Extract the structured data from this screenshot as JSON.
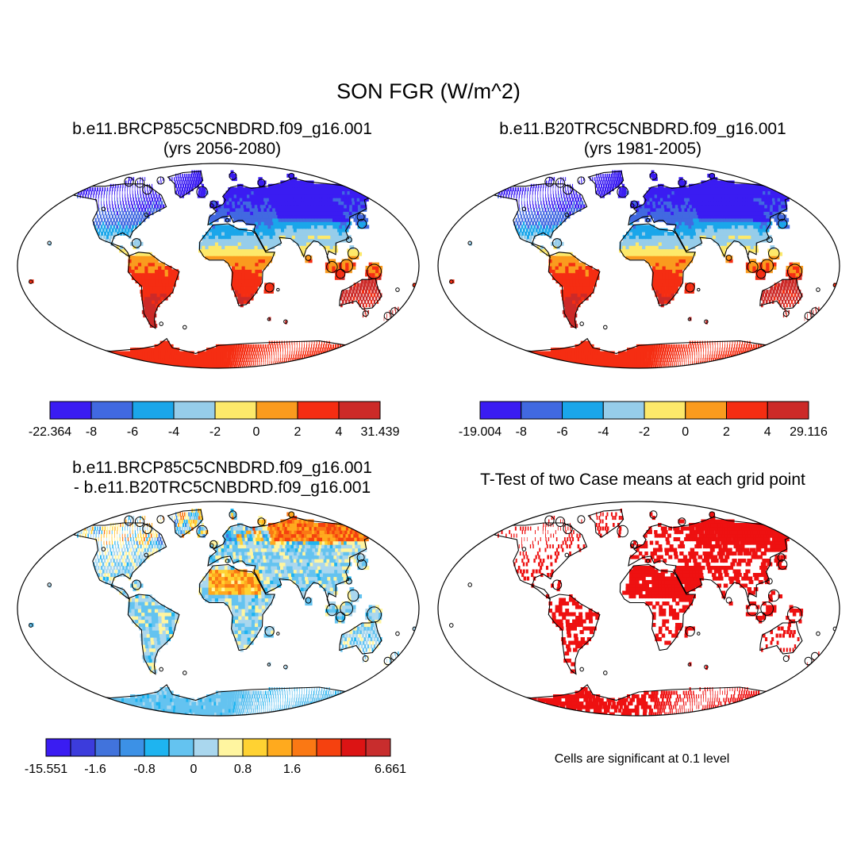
{
  "main_title": "SON FGR (W/m^2)",
  "panels": [
    {
      "title_line1": "b.e11.BRCP85C5CNBDRD.f09_g16.001",
      "title_line2": "(yrs 2056-2080)",
      "colorbar": {
        "colors": [
          "#3a1cf2",
          "#4169e1",
          "#1aa6ea",
          "#96cdea",
          "#fde96a",
          "#fa9b1e",
          "#f52d12",
          "#cc2a28"
        ],
        "labels": [
          "-22.364",
          "-8",
          "-6",
          "-4",
          "-2",
          "0",
          "2",
          "4",
          "31.439"
        ]
      }
    },
    {
      "title_line1": "b.e11.B20TRC5CNBDRD.f09_g16.001",
      "title_line2": "(yrs 1981-2005)",
      "colorbar": {
        "colors": [
          "#3a1cf2",
          "#4169e1",
          "#1aa6ea",
          "#96cdea",
          "#fde96a",
          "#fa9b1e",
          "#f52d12",
          "#cc2a28"
        ],
        "labels": [
          "-19.004",
          "-8",
          "-6",
          "-4",
          "-2",
          "0",
          "2",
          "4",
          "29.116"
        ]
      }
    },
    {
      "title_line1": "b.e11.BRCP85C5CNBDRD.f09_g16.001",
      "title_line2": "- b.e11.B20TRC5CNBDRD.f09_g16.001",
      "colorbar": {
        "colors": [
          "#3a1cf2",
          "#3c3cdc",
          "#4173dc",
          "#3c91e6",
          "#1eb4f0",
          "#64c3f0",
          "#aad7ee",
          "#fff5a0",
          "#ffd232",
          "#ffaa1e",
          "#fa7814",
          "#f5410f",
          "#dc1414",
          "#c82d2d"
        ],
        "labels": [
          "-15.551",
          "",
          "-1.6",
          "",
          "-0.8",
          "",
          "0",
          "",
          "0.8",
          "",
          "1.6",
          "",
          "",
          "",
          "6.661"
        ]
      }
    },
    {
      "title_line1": "T-Test of two Case means at each grid point",
      "note": "Cells are significant at 0.1 level",
      "sig_color": "#ee1111"
    }
  ]
}
